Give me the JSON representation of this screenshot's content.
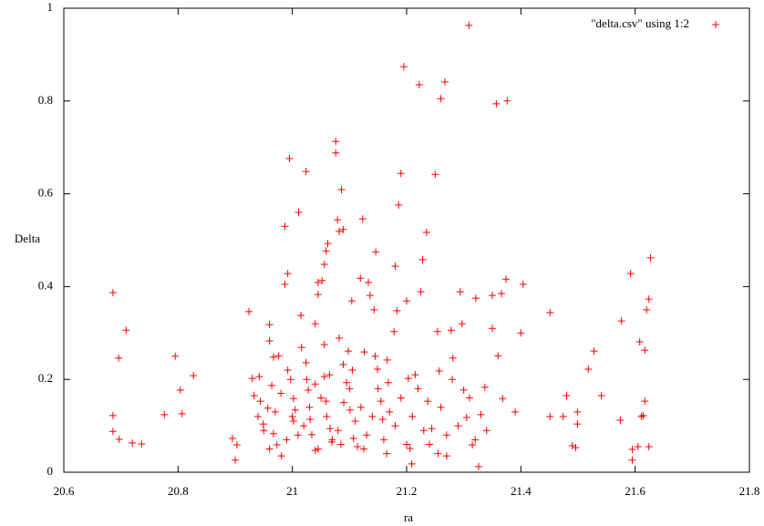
{
  "chart_data": {
    "type": "scatter",
    "x_label": "ra",
    "y_label": "Delta",
    "xlim": [
      20.6,
      21.8
    ],
    "xticks": [
      20.6,
      20.8,
      21,
      21.2,
      21.4,
      21.6,
      21.8
    ],
    "ylim": [
      0,
      1
    ],
    "yticks": [
      0,
      0.2,
      0.4,
      0.6,
      0.8,
      1
    ],
    "series": [
      {
        "name": "\"delta.csv\" using 1:2",
        "color": "#ff0000",
        "x": [
          20.686,
          20.696,
          20.709,
          20.686,
          20.686,
          20.697,
          20.72,
          20.736,
          20.776,
          20.795,
          20.804,
          20.807,
          20.827,
          20.895,
          20.9,
          20.903,
          20.924,
          20.93,
          20.933,
          20.942,
          20.944,
          20.949,
          20.957,
          20.96,
          20.96,
          20.967,
          20.976,
          20.964,
          20.967,
          20.973,
          20.981,
          20.987,
          20.992,
          20.987,
          20.995,
          20.992,
          20.997,
          21.002,
          21.005,
          21.002,
          21.011,
          21.015,
          21.016,
          21.024,
          21.024,
          21.028,
          21.031,
          21.034,
          21.04,
          21.04,
          21.045,
          21.045,
          21.052,
          21.056,
          21.059,
          21.062,
          21.056,
          21.056,
          21.059,
          21.066,
          21.069,
          21.076,
          21.076,
          21.079,
          21.082,
          21.086,
          21.089,
          21.082,
          21.089,
          21.095,
          21.098,
          21.104,
          21.101,
          21.107,
          21.114,
          21.119,
          21.123,
          21.126,
          21.133,
          21.136,
          21.143,
          21.146,
          21.149,
          21.155,
          21.158,
          21.166,
          21.168,
          21.178,
          21.18,
          21.183,
          21.186,
          21.19,
          21.195,
          21.2,
          21.203,
          21.206,
          21.209,
          21.222,
          21.225,
          21.228,
          21.235,
          21.237,
          21.244,
          21.25,
          21.254,
          21.257,
          21.26,
          21.267,
          21.27,
          21.278,
          21.281,
          21.294,
          21.297,
          21.3,
          21.305,
          21.309,
          21.315,
          21.321,
          21.326,
          21.33,
          21.337,
          21.35,
          21.357,
          21.35,
          21.36,
          21.366,
          21.374,
          21.376,
          21.368,
          21.39,
          21.4,
          21.404,
          21.451,
          21.451,
          21.474,
          21.48,
          21.49,
          21.496,
          21.499,
          21.499,
          21.518,
          21.528,
          21.541,
          21.576,
          21.574,
          21.592,
          21.595,
          21.595,
          21.605,
          21.608,
          21.611,
          21.614,
          21.617,
          21.617,
          21.62,
          21.624,
          21.624,
          21.627,
          21.0,
          21.01,
          21.02,
          21.03,
          21.04,
          21.05,
          21.06,
          21.07,
          21.08,
          21.09,
          21.1,
          21.11,
          21.12,
          21.13,
          21.14,
          21.15,
          21.16,
          21.17,
          21.18,
          21.19,
          21.21,
          21.22,
          21.23,
          21.24,
          21.26,
          21.27,
          21.28,
          21.29,
          20.95,
          20.97,
          20.98,
          20.99,
          21.025,
          21.045,
          21.065,
          21.085,
          21.105,
          21.125,
          21.145,
          21.165,
          21.2,
          21.215,
          21.255,
          21.31,
          21.32,
          21.34,
          20.94,
          20.96
        ],
        "values": [
          0.387,
          0.246,
          0.306,
          0.122,
          0.088,
          0.071,
          0.063,
          0.061,
          0.124,
          0.25,
          0.177,
          0.126,
          0.208,
          0.073,
          0.026,
          0.059,
          0.346,
          0.202,
          0.165,
          0.206,
          0.153,
          0.104,
          0.138,
          0.318,
          0.283,
          0.248,
          0.251,
          0.187,
          0.083,
          0.059,
          0.035,
          0.53,
          0.428,
          0.405,
          0.676,
          0.22,
          0.2,
          0.159,
          0.134,
          0.11,
          0.56,
          0.338,
          0.269,
          0.648,
          0.236,
          0.177,
          0.114,
          0.081,
          0.047,
          0.32,
          0.383,
          0.409,
          0.413,
          0.448,
          0.477,
          0.493,
          0.275,
          0.206,
          0.153,
          0.094,
          0.065,
          0.713,
          0.688,
          0.544,
          0.519,
          0.609,
          0.523,
          0.289,
          0.232,
          0.193,
          0.261,
          0.369,
          0.134,
          0.073,
          0.055,
          0.418,
          0.546,
          0.259,
          0.409,
          0.381,
          0.35,
          0.475,
          0.222,
          0.153,
          0.114,
          0.242,
          0.193,
          0.303,
          0.444,
          0.348,
          0.576,
          0.644,
          0.874,
          0.369,
          0.202,
          0.051,
          0.018,
          0.835,
          0.389,
          0.458,
          0.517,
          0.153,
          0.094,
          0.642,
          0.303,
          0.218,
          0.805,
          0.841,
          0.035,
          0.306,
          0.246,
          0.389,
          0.32,
          0.177,
          0.118,
          0.963,
          0.059,
          0.375,
          0.012,
          0.124,
          0.183,
          0.31,
          0.794,
          0.381,
          0.251,
          0.385,
          0.416,
          0.8,
          0.159,
          0.13,
          0.3,
          0.405,
          0.344,
          0.12,
          0.12,
          0.165,
          0.057,
          0.053,
          0.13,
          0.104,
          0.222,
          0.261,
          0.165,
          0.326,
          0.112,
          0.428,
          0.026,
          0.049,
          0.055,
          0.281,
          0.12,
          0.122,
          0.263,
          0.153,
          0.35,
          0.373,
          0.055,
          0.462,
          0.12,
          0.08,
          0.1,
          0.14,
          0.19,
          0.16,
          0.12,
          0.07,
          0.09,
          0.15,
          0.18,
          0.11,
          0.14,
          0.08,
          0.12,
          0.18,
          0.07,
          0.13,
          0.1,
          0.16,
          0.12,
          0.18,
          0.09,
          0.06,
          0.14,
          0.08,
          0.2,
          0.1,
          0.09,
          0.13,
          0.17,
          0.07,
          0.2,
          0.05,
          0.21,
          0.06,
          0.22,
          0.05,
          0.25,
          0.04,
          0.06,
          0.21,
          0.04,
          0.16,
          0.07,
          0.09,
          0.12,
          0.05
        ]
      }
    ]
  }
}
